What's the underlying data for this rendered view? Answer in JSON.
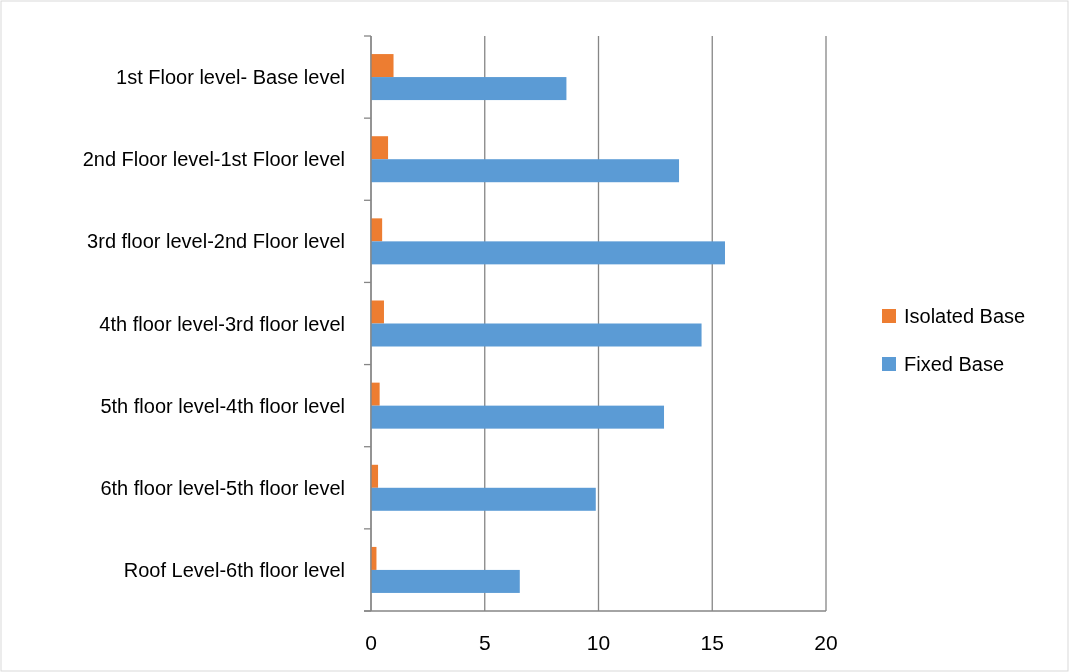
{
  "chart_data": {
    "type": "bar",
    "orientation": "horizontal",
    "categories": [
      "1st Floor level- Base level",
      "2nd Floor level-1st Floor level",
      "3rd floor level-2nd Floor level",
      "4th floor level-3rd floor level",
      "5th floor level-4th floor level",
      "6th floor level-5th floor level",
      "Roof Level-6th floor level"
    ],
    "series": [
      {
        "name": "Isolated Base",
        "color": "#ed7d31",
        "values": [
          0.99,
          0.75,
          0.49,
          0.57,
          0.38,
          0.31,
          0.24
        ]
      },
      {
        "name": "Fixed Base",
        "color": "#5b9bd5",
        "values": [
          8.59,
          13.54,
          15.56,
          14.53,
          12.88,
          9.88,
          6.54
        ]
      }
    ],
    "xlim": [
      0,
      20
    ],
    "xticks": [
      0,
      5,
      10,
      15,
      20
    ],
    "grid": "x",
    "legend": "right"
  }
}
